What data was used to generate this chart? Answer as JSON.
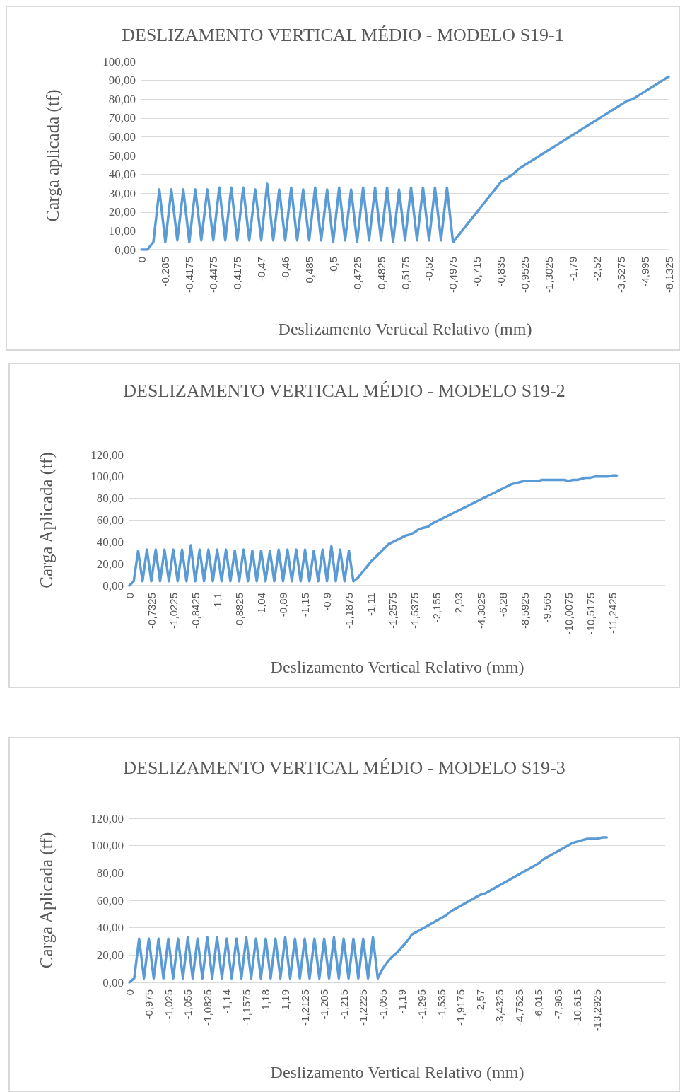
{
  "chart_data": [
    {
      "type": "line",
      "title": "DESLIZAMENTO VERTICAL MÉDIO - MODELO S19-1",
      "xlabel": "Deslizamento Vertical Relativo (mm)",
      "ylabel": "Carga aplicada (tf)",
      "categories": [
        "0",
        null,
        null,
        null,
        "-0,285",
        null,
        null,
        null,
        "-0,4175",
        null,
        null,
        null,
        "-0,4475",
        null,
        null,
        null,
        "-0,4175",
        null,
        null,
        null,
        "-0,47",
        null,
        null,
        null,
        "-0,46",
        null,
        null,
        null,
        "-0,485",
        null,
        null,
        null,
        "-0,5",
        null,
        null,
        null,
        "-0,4725",
        null,
        null,
        null,
        "-0,4825",
        null,
        null,
        null,
        "-0,5175",
        null,
        null,
        null,
        "-0,52",
        null,
        null,
        null,
        "-0,4975",
        null,
        null,
        null,
        "-0,715",
        null,
        null,
        null,
        "-0,835",
        null,
        null,
        null,
        "-0,9525",
        null,
        null,
        null,
        "-1,3025",
        null,
        null,
        null,
        "-1,79",
        null,
        null,
        null,
        "-2,52",
        null,
        null,
        null,
        "-3,5275",
        null,
        null,
        null,
        "-4,995",
        null,
        null,
        null,
        "-8,1325"
      ],
      "series": [
        {
          "color": "#5b9bd5",
          "values": [
            0,
            0,
            4,
            32,
            4,
            32,
            5,
            32,
            4,
            32,
            5,
            32,
            5,
            33,
            5,
            33,
            5,
            33,
            5,
            32,
            5,
            35,
            5,
            32,
            5,
            33,
            5,
            32,
            5,
            33,
            5,
            32,
            4,
            33,
            5,
            32,
            4,
            33,
            5,
            33,
            5,
            33,
            4,
            32,
            5,
            33,
            5,
            33,
            5,
            33,
            5,
            33,
            4,
            8,
            12,
            16,
            20,
            24,
            28,
            32,
            36,
            38,
            40,
            43,
            45,
            47,
            49,
            51,
            53,
            55,
            57,
            59,
            61,
            63,
            65,
            67,
            69,
            71,
            73,
            75,
            77,
            79,
            80,
            82,
            84,
            86,
            88,
            90,
            92
          ]
        }
      ],
      "ylim": [
        0,
        100
      ],
      "yticks": [
        {
          "value": 0,
          "label": "0,00"
        },
        {
          "value": 10,
          "label": "10,00"
        },
        {
          "value": 20,
          "label": "20,00"
        },
        {
          "value": 30,
          "label": "30,00"
        },
        {
          "value": 40,
          "label": "40,00"
        },
        {
          "value": 50,
          "label": "50,00"
        },
        {
          "value": 60,
          "label": "60,00"
        },
        {
          "value": 70,
          "label": "70,00"
        },
        {
          "value": 80,
          "label": "80,00"
        },
        {
          "value": 90,
          "label": "90,00"
        },
        {
          "value": 100,
          "label": "100,00"
        }
      ],
      "grid": "y",
      "marker": "none"
    },
    {
      "type": "line",
      "title": "DESLIZAMENTO VERTICAL MÉDIO - MODELO S19-2",
      "xlabel": "Deslizamento Vertical Relativo (mm)",
      "ylabel": "Carga Aplicada (tf)",
      "categories": [
        "0",
        null,
        null,
        null,
        null,
        "-0,7325",
        null,
        null,
        null,
        null,
        "-1,0225",
        null,
        null,
        null,
        null,
        "-0,8425",
        null,
        null,
        null,
        null,
        "-1,1",
        null,
        null,
        null,
        null,
        "-0,8825",
        null,
        null,
        null,
        null,
        "-1,04",
        null,
        null,
        null,
        null,
        "-0,89",
        null,
        null,
        null,
        null,
        "-1,15",
        null,
        null,
        null,
        null,
        "-0,9",
        null,
        null,
        null,
        null,
        "-1,1875",
        null,
        null,
        null,
        null,
        "-1,11",
        null,
        null,
        null,
        null,
        "-1,2575",
        null,
        null,
        null,
        null,
        "-1,5375",
        null,
        null,
        null,
        null,
        "-2,155",
        null,
        null,
        null,
        null,
        "-2,93",
        null,
        null,
        null,
        null,
        "-4,3025",
        null,
        null,
        null,
        null,
        "-6,28",
        null,
        null,
        null,
        null,
        "-8,5925",
        null,
        null,
        null,
        null,
        "-9,565",
        null,
        null,
        null,
        null,
        "-10,0075",
        null,
        null,
        null,
        null,
        "-10,5175",
        null,
        null,
        null,
        null,
        "-11,2425",
        null,
        null,
        null,
        null,
        null,
        null,
        null,
        null,
        null,
        null,
        null,
        null
      ],
      "series": [
        {
          "color": "#5b9bd5",
          "values": [
            0,
            4,
            32,
            4,
            33,
            4,
            33,
            4,
            33,
            4,
            33,
            4,
            33,
            4,
            37,
            4,
            33,
            4,
            33,
            4,
            33,
            4,
            33,
            4,
            32,
            4,
            33,
            4,
            32,
            4,
            32,
            4,
            32,
            4,
            33,
            4,
            33,
            4,
            33,
            4,
            33,
            4,
            32,
            4,
            33,
            4,
            36,
            4,
            33,
            4,
            32,
            4,
            7,
            12,
            17,
            22,
            26,
            30,
            34,
            38,
            40,
            42,
            44,
            46,
            47,
            49,
            52,
            53,
            54,
            57,
            59,
            61,
            63,
            65,
            67,
            69,
            71,
            73,
            75,
            77,
            79,
            81,
            83,
            85,
            87,
            89,
            91,
            93,
            94,
            95,
            96,
            96,
            96,
            96,
            97,
            97,
            97,
            97,
            97,
            97,
            96,
            97,
            97,
            98,
            99,
            99,
            100,
            100,
            100,
            100,
            101,
            101,
            null,
            null,
            null,
            null,
            null,
            null,
            null,
            null,
            null,
            null,
            null
          ]
        }
      ],
      "ylim": [
        0,
        120
      ],
      "yticks": [
        {
          "value": 0,
          "label": "0,00"
        },
        {
          "value": 20,
          "label": "20,00"
        },
        {
          "value": 40,
          "label": "40,00"
        },
        {
          "value": 60,
          "label": "60,00"
        },
        {
          "value": 80,
          "label": "80,00"
        },
        {
          "value": 100,
          "label": "100,00"
        },
        {
          "value": 120,
          "label": "120,00"
        }
      ],
      "grid": "y",
      "marker": "none"
    },
    {
      "type": "line",
      "title": "DESLIZAMENTO VERTICAL MÉDIO - MODELO S19-3",
      "xlabel": "Deslizamento Vertical Relativo (mm)",
      "ylabel": "Carga Aplicada (tf)",
      "categories": [
        "0",
        null,
        null,
        null,
        "-0,975",
        null,
        null,
        null,
        "-1,025",
        null,
        null,
        null,
        "-1,055",
        null,
        null,
        null,
        "-1,0825",
        null,
        null,
        null,
        "-1,14",
        null,
        null,
        null,
        "-1,1575",
        null,
        null,
        null,
        "-1,18",
        null,
        null,
        null,
        "-1,19",
        null,
        null,
        null,
        "-1,2125",
        null,
        null,
        null,
        "-1,205",
        null,
        null,
        null,
        "-1,215",
        null,
        null,
        null,
        "-1,2225",
        null,
        null,
        null,
        "-1,055",
        null,
        null,
        null,
        "-1,19",
        null,
        null,
        null,
        "-1,295",
        null,
        null,
        null,
        "-1,535",
        null,
        null,
        null,
        "-1,9175",
        null,
        null,
        null,
        "-2,57",
        null,
        null,
        null,
        "-3,4325",
        null,
        null,
        null,
        "-4,7525",
        null,
        null,
        null,
        "-6,015",
        null,
        null,
        null,
        "-7,985",
        null,
        null,
        null,
        "-10,615",
        null,
        null,
        null,
        "-13,2925",
        null,
        null,
        null,
        null,
        null,
        null,
        null,
        null,
        null,
        null,
        null,
        null,
        null,
        null
      ],
      "series": [
        {
          "color": "#5b9bd5",
          "values": [
            0,
            3,
            32,
            3,
            32,
            3,
            32,
            3,
            32,
            3,
            32,
            3,
            33,
            3,
            32,
            3,
            33,
            3,
            33,
            3,
            32,
            3,
            32,
            3,
            33,
            3,
            32,
            3,
            32,
            3,
            32,
            3,
            33,
            3,
            32,
            3,
            32,
            3,
            32,
            3,
            32,
            3,
            33,
            3,
            32,
            3,
            32,
            3,
            32,
            3,
            33,
            3,
            10,
            15,
            19,
            22,
            26,
            30,
            35,
            37,
            39,
            41,
            43,
            45,
            47,
            49,
            52,
            54,
            56,
            58,
            60,
            62,
            64,
            65,
            67,
            69,
            71,
            73,
            75,
            77,
            79,
            81,
            83,
            85,
            87,
            90,
            92,
            94,
            96,
            98,
            100,
            102,
            103,
            104,
            105,
            105,
            105,
            106,
            106,
            null,
            null,
            null,
            null,
            null,
            null,
            null,
            null,
            null,
            null,
            null,
            null
          ]
        }
      ],
      "ylim": [
        0,
        120
      ],
      "yticks": [
        {
          "value": 0,
          "label": "0,00"
        },
        {
          "value": 20,
          "label": "20,00"
        },
        {
          "value": 40,
          "label": "40,00"
        },
        {
          "value": 60,
          "label": "60,00"
        },
        {
          "value": 80,
          "label": "80,00"
        },
        {
          "value": 100,
          "label": "100,00"
        },
        {
          "value": 120,
          "label": "120,00"
        }
      ],
      "grid": "y",
      "marker": "none"
    }
  ]
}
